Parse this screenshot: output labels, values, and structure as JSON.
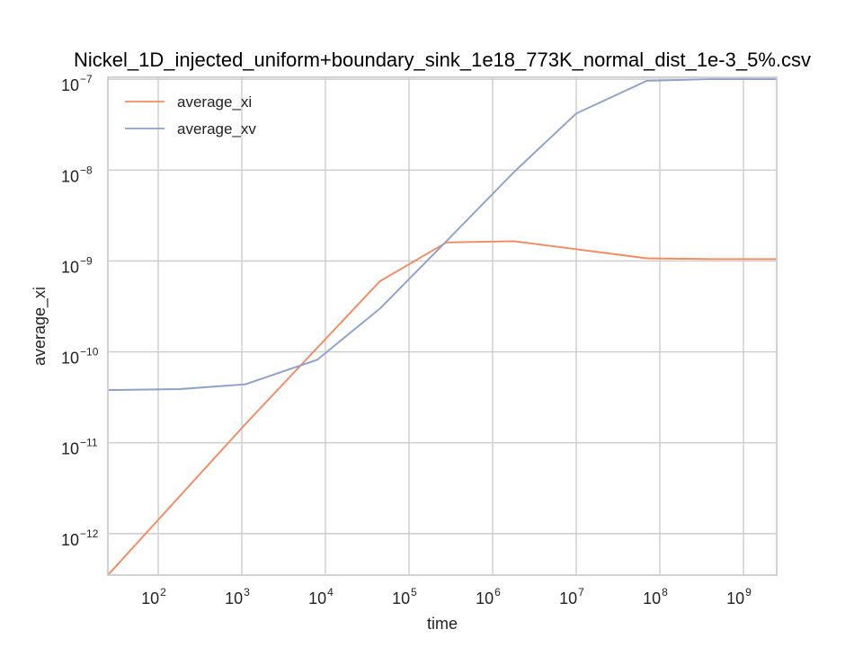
{
  "chart_data": {
    "type": "line",
    "title": "Nickel_1D_injected_uniform+boundary_sink_1e18_773K_normal_dist_1e-3_5%.csv",
    "xlabel": "time",
    "ylabel": "average_xi",
    "xscale": "log",
    "yscale": "log",
    "xlim": [
      25,
      2500000000
    ],
    "ylim": [
      3.5e-13,
      1.05e-07
    ],
    "grid": true,
    "legend_position": "top-left",
    "x_ticks": [
      {
        "base": "10",
        "exp": "2",
        "value": 100
      },
      {
        "base": "10",
        "exp": "3",
        "value": 1000
      },
      {
        "base": "10",
        "exp": "4",
        "value": 10000
      },
      {
        "base": "10",
        "exp": "5",
        "value": 100000
      },
      {
        "base": "10",
        "exp": "6",
        "value": 1000000
      },
      {
        "base": "10",
        "exp": "7",
        "value": 10000000
      },
      {
        "base": "10",
        "exp": "8",
        "value": 100000000
      },
      {
        "base": "10",
        "exp": "9",
        "value": 1000000000
      }
    ],
    "y_ticks": [
      {
        "base": "10",
        "exp": "−12",
        "value": 1e-12
      },
      {
        "base": "10",
        "exp": "−11",
        "value": 1e-11
      },
      {
        "base": "10",
        "exp": "−10",
        "value": 1e-10
      },
      {
        "base": "10",
        "exp": "−9",
        "value": 1e-09
      },
      {
        "base": "10",
        "exp": "−8",
        "value": 1e-08
      },
      {
        "base": "10",
        "exp": "−7",
        "value": 1e-07
      }
    ],
    "series": [
      {
        "name": "average_xi",
        "color": "#f4895f",
        "x": [
          25,
          1100,
          45000,
          280000,
          1800000,
          10000000,
          70000000,
          400000000,
          2500000000
        ],
        "y": [
          3.5e-13,
          1.6e-11,
          6e-10,
          1.6e-09,
          1.65e-09,
          1.35e-09,
          1.07e-09,
          1.05e-09,
          1.05e-09
        ]
      },
      {
        "name": "average_xv",
        "color": "#8da0cb",
        "x": [
          25,
          180,
          1100,
          8000,
          45000,
          280000,
          1800000,
          10000000,
          70000000,
          400000000,
          2500000000
        ],
        "y": [
          3.8e-11,
          3.9e-11,
          4.4e-11,
          8.2e-11,
          3e-10,
          1.65e-09,
          9.5e-09,
          4.2e-08,
          9.6e-08,
          1e-07,
          1e-07
        ]
      }
    ]
  }
}
